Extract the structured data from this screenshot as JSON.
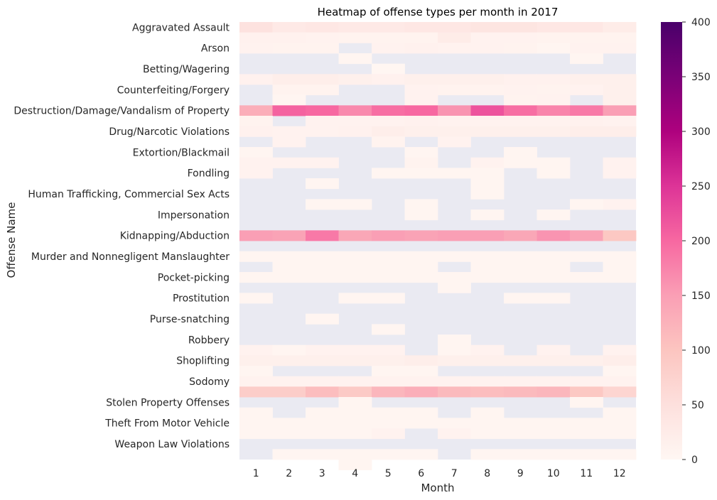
{
  "chart_data": {
    "type": "heatmap",
    "title": "Heatmap of offense types per month in 2017",
    "xlabel": "Month",
    "ylabel": "Offense Name",
    "x_categories": [
      "1",
      "2",
      "3",
      "4",
      "5",
      "6",
      "7",
      "8",
      "9",
      "10",
      "11",
      "12"
    ],
    "y_categories": [
      "Aggravated Assault",
      "",
      "Arson",
      "",
      "Betting/Wagering",
      "",
      "Counterfeiting/Forgery",
      "",
      "Destruction/Damage/Vandalism of Property",
      "",
      "Drug/Narcotic Violations",
      "",
      "Extortion/Blackmail",
      "",
      "Fondling",
      "",
      "Human Trafficking, Commercial Sex Acts",
      "",
      "Impersonation",
      "",
      "Kidnapping/Abduction",
      "",
      "Murder and Nonnegligent Manslaughter",
      "",
      "Pocket-picking",
      "",
      "Prostitution",
      "",
      "Purse-snatching",
      "",
      "Robbery",
      "",
      "Shoplifting",
      "",
      "Sodomy",
      "",
      "Stolen Property Offenses",
      "",
      "Theft From Motor Vehicle",
      "",
      "Weapon Law Violations",
      ""
    ],
    "values": [
      [
        45,
        30,
        35,
        30,
        30,
        35,
        35,
        40,
        40,
        35,
        35,
        25
      ],
      [
        12,
        12,
        10,
        8,
        8,
        8,
        25,
        10,
        10,
        8,
        8,
        8
      ],
      [
        10,
        8,
        8,
        null,
        10,
        12,
        10,
        10,
        8,
        5,
        10,
        10
      ],
      [
        null,
        null,
        null,
        5,
        null,
        null,
        null,
        null,
        null,
        null,
        5,
        null
      ],
      [
        null,
        null,
        null,
        null,
        3,
        null,
        null,
        null,
        null,
        null,
        null,
        null
      ],
      [
        12,
        20,
        20,
        15,
        12,
        15,
        15,
        15,
        12,
        12,
        15,
        15
      ],
      [
        null,
        8,
        8,
        null,
        null,
        10,
        8,
        8,
        10,
        8,
        10,
        15
      ],
      [
        null,
        5,
        null,
        null,
        null,
        10,
        null,
        null,
        8,
        10,
        null,
        15
      ],
      [
        130,
        205,
        200,
        170,
        195,
        200,
        160,
        220,
        195,
        175,
        185,
        150
      ],
      [
        8,
        null,
        10,
        10,
        10,
        12,
        10,
        10,
        10,
        10,
        12,
        10
      ],
      [
        12,
        10,
        10,
        12,
        20,
        15,
        15,
        15,
        15,
        15,
        20,
        20
      ],
      [
        null,
        10,
        null,
        null,
        8,
        null,
        10,
        null,
        null,
        null,
        null,
        null
      ],
      [
        5,
        null,
        null,
        null,
        null,
        5,
        null,
        null,
        5,
        null,
        null,
        null
      ],
      [
        10,
        10,
        10,
        null,
        null,
        8,
        null,
        10,
        5,
        5,
        null,
        10
      ],
      [
        10,
        null,
        null,
        null,
        5,
        5,
        5,
        5,
        null,
        5,
        null,
        10
      ],
      [
        null,
        null,
        5,
        null,
        null,
        null,
        null,
        5,
        null,
        null,
        null,
        null
      ],
      [
        null,
        null,
        null,
        null,
        null,
        null,
        null,
        5,
        null,
        null,
        null,
        null
      ],
      [
        null,
        null,
        5,
        5,
        null,
        5,
        null,
        null,
        null,
        null,
        5,
        10
      ],
      [
        null,
        null,
        null,
        null,
        null,
        5,
        null,
        5,
        null,
        5,
        null,
        null
      ],
      [
        null,
        null,
        null,
        null,
        null,
        null,
        null,
        null,
        null,
        null,
        null,
        null
      ],
      [
        150,
        145,
        185,
        140,
        150,
        145,
        150,
        150,
        140,
        160,
        145,
        95
      ],
      [
        null,
        null,
        null,
        null,
        null,
        null,
        null,
        null,
        null,
        null,
        null,
        null
      ],
      [
        5,
        5,
        5,
        5,
        5,
        5,
        5,
        5,
        5,
        5,
        5,
        5
      ],
      [
        null,
        5,
        5,
        5,
        5,
        5,
        null,
        5,
        5,
        5,
        null,
        5
      ],
      [
        5,
        5,
        5,
        5,
        5,
        5,
        5,
        5,
        5,
        5,
        5,
        5
      ],
      [
        null,
        null,
        null,
        null,
        null,
        null,
        5,
        null,
        null,
        null,
        null,
        null
      ],
      [
        5,
        null,
        null,
        5,
        5,
        null,
        null,
        null,
        5,
        5,
        null,
        null
      ],
      [
        null,
        null,
        null,
        null,
        null,
        null,
        null,
        null,
        null,
        null,
        null,
        null
      ],
      [
        null,
        null,
        5,
        null,
        null,
        null,
        null,
        null,
        null,
        null,
        null,
        null
      ],
      [
        null,
        null,
        null,
        null,
        5,
        null,
        null,
        null,
        null,
        null,
        null,
        null
      ],
      [
        null,
        null,
        null,
        null,
        null,
        null,
        5,
        null,
        null,
        null,
        null,
        null
      ],
      [
        10,
        5,
        10,
        10,
        10,
        null,
        5,
        10,
        null,
        10,
        null,
        10
      ],
      [
        15,
        15,
        15,
        15,
        15,
        20,
        15,
        15,
        15,
        15,
        15,
        20
      ],
      [
        5,
        null,
        null,
        null,
        5,
        5,
        null,
        null,
        null,
        null,
        null,
        5
      ],
      [
        10,
        10,
        10,
        10,
        10,
        10,
        10,
        10,
        10,
        10,
        10,
        10
      ],
      [
        85,
        85,
        110,
        90,
        120,
        130,
        115,
        110,
        115,
        120,
        95,
        70
      ],
      [
        null,
        null,
        null,
        5,
        null,
        null,
        null,
        null,
        null,
        null,
        5,
        null
      ],
      [
        5,
        null,
        5,
        5,
        5,
        5,
        null,
        5,
        null,
        null,
        null,
        5
      ],
      [
        5,
        5,
        5,
        5,
        5,
        5,
        5,
        5,
        5,
        5,
        5,
        5
      ],
      [
        5,
        5,
        5,
        5,
        10,
        null,
        10,
        5,
        5,
        5,
        5,
        5
      ],
      [
        null,
        null,
        null,
        null,
        null,
        null,
        null,
        null,
        null,
        null,
        null,
        null
      ],
      [
        null,
        5,
        5,
        5,
        5,
        5,
        null,
        5,
        5,
        5,
        5,
        5
      ],
      [
        null,
        null,
        null,
        5,
        null,
        null,
        null,
        null,
        null,
        null,
        null,
        null
      ]
    ],
    "colorbar": {
      "min": 0,
      "max": 400,
      "ticks": [
        0,
        50,
        100,
        150,
        200,
        250,
        300,
        350,
        400
      ],
      "colormap": "RdPu"
    },
    "missing_color": "#eaeaf2",
    "grid": false
  }
}
